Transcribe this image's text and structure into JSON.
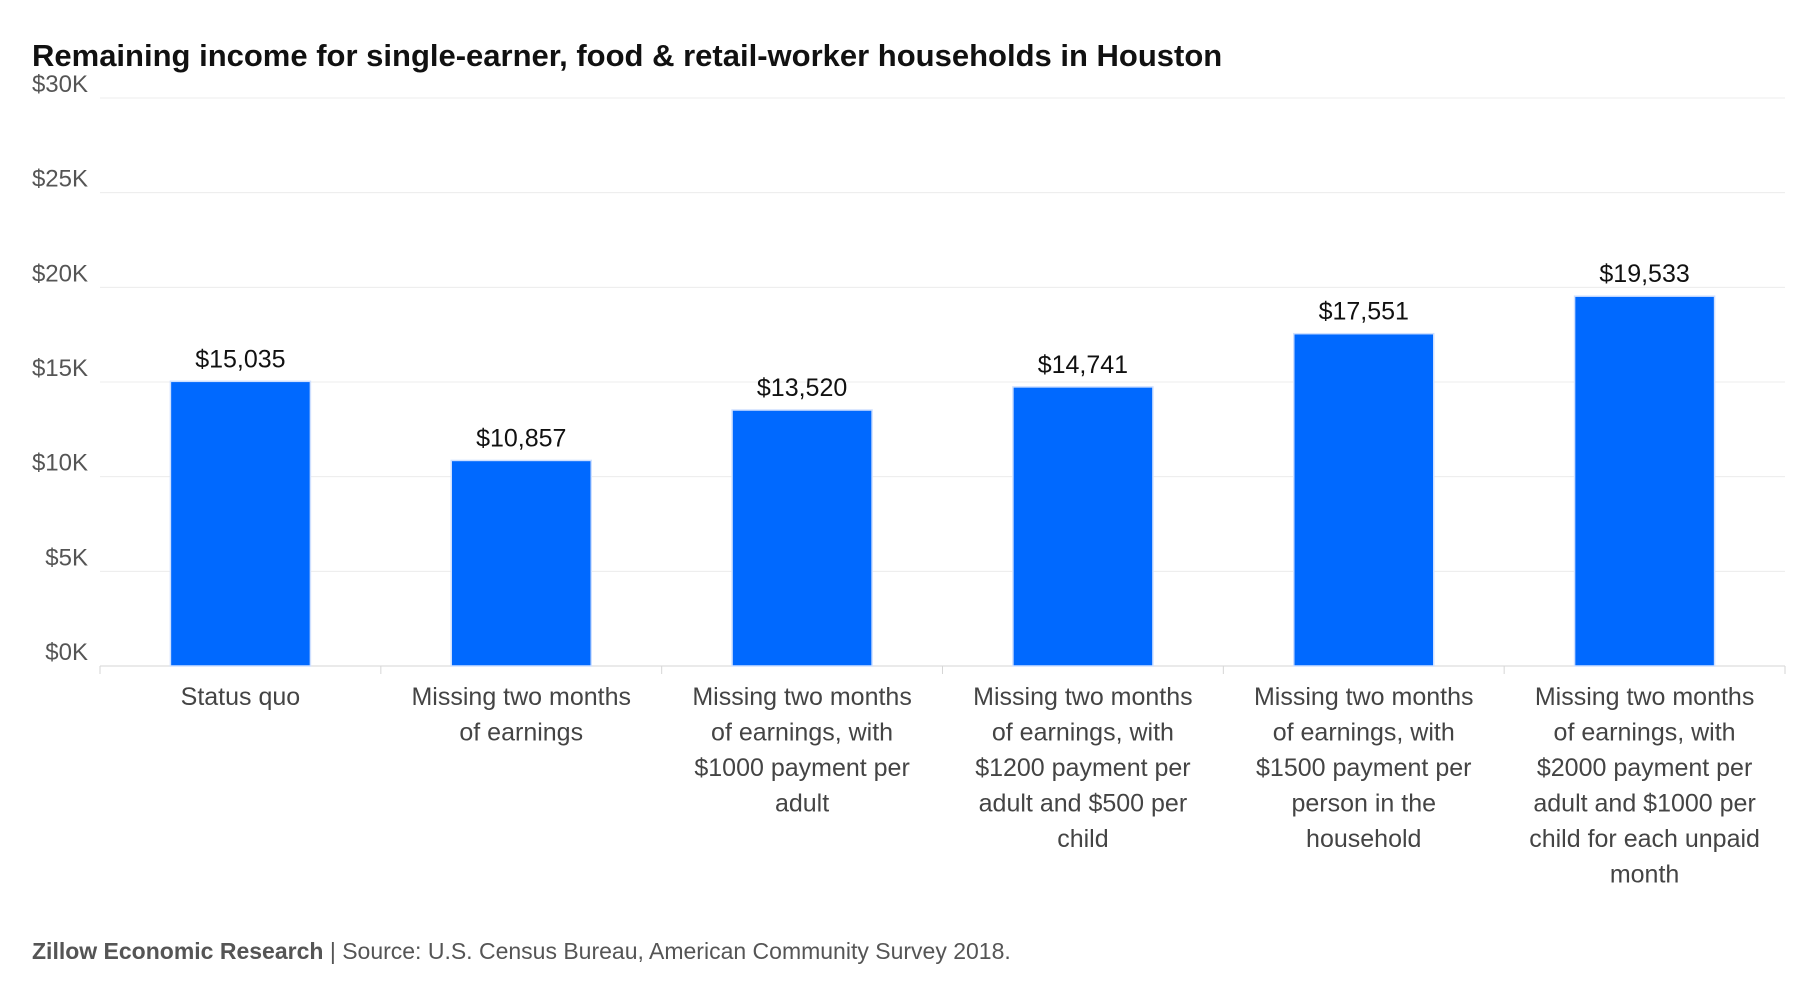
{
  "chart_data": {
    "type": "bar",
    "title": "Remaining income for single-earner, food & retail-worker households in Houston",
    "categories": [
      "Status quo",
      "Missing two months of earnings",
      "Missing two months of earnings, with $1000 payment per adult",
      "Missing two months of earnings, with $1200 payment per adult and $500 per child",
      "Missing two months of earnings, with $1500 payment per person in the household",
      "Missing two months of earnings, with $2000 payment per adult and $1000 per child for each unpaid month"
    ],
    "category_lines": [
      [
        "Status quo"
      ],
      [
        "Missing two months",
        "of earnings"
      ],
      [
        "Missing two months",
        "of earnings, with",
        "$1000 payment per",
        "adult"
      ],
      [
        "Missing two months",
        "of earnings, with",
        "$1200 payment per",
        "adult and $500 per",
        "child"
      ],
      [
        "Missing two months",
        "of earnings, with",
        "$1500 payment per",
        "person in the",
        "household"
      ],
      [
        "Missing two months",
        "of earnings, with",
        "$2000 payment per",
        "adult and $1000 per",
        "child for each unpaid",
        "month"
      ]
    ],
    "values": [
      15035,
      10857,
      13520,
      14741,
      17551,
      19533
    ],
    "data_labels": [
      "$15,035",
      "$10,857",
      "$13,520",
      "$14,741",
      "$17,551",
      "$19,533"
    ],
    "ylim": [
      0,
      30000
    ],
    "yticks": [
      0,
      5000,
      10000,
      15000,
      20000,
      25000,
      30000
    ],
    "ytick_labels": [
      "$0K",
      "$5K",
      "$10K",
      "$15K",
      "$20K",
      "$25K",
      "$30K"
    ],
    "xlabel": "",
    "ylabel": "",
    "grid": true,
    "bar_color": "#0069ff"
  },
  "footer": {
    "brand": "Zillow Economic Research",
    "separator": "|",
    "source": "Source: U.S. Census Bureau, American Community Survey 2018."
  }
}
